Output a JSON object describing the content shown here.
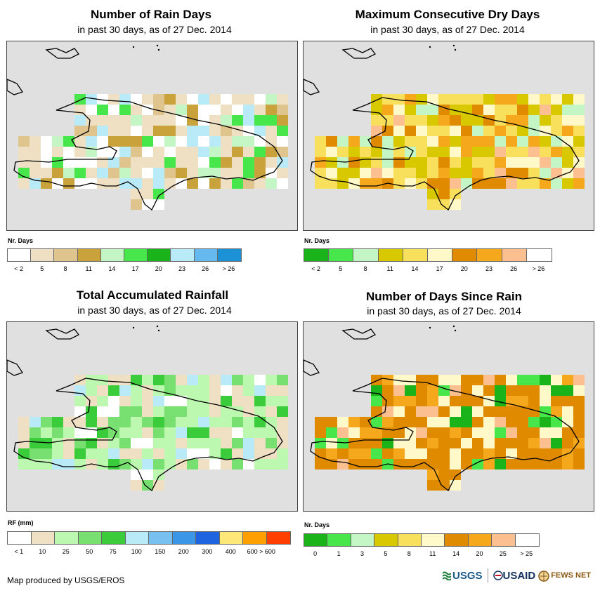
{
  "panels": [
    {
      "id": "rain-days",
      "title": "Number of Rain Days",
      "subtitle": "in past 30 days, as of 27 Dec. 2014",
      "legend_title": "Nr. Days",
      "legend_colors": [
        "#ffffff",
        "#f0e0c3",
        "#e0c48e",
        "#c9a23b",
        "#c3f5c5",
        "#47e64a",
        "#1ab31a",
        "#b8eaf8",
        "#66b9ef",
        "#1d91d6"
      ],
      "legend_labels": [
        "< 2",
        "5",
        "8",
        "11",
        "14",
        "17",
        "20",
        "23",
        "26",
        "> 26"
      ]
    },
    {
      "id": "dry-days",
      "title": "Maximum Consecutive Dry Days",
      "subtitle": "in past 30 days, as of 27 Dec. 2014",
      "legend_title": "Nr. Days",
      "legend_colors": [
        "#1ab31a",
        "#47e64a",
        "#c3f5c5",
        "#d8c800",
        "#f8df5c",
        "#fff8c8",
        "#e08a00",
        "#f6a81c",
        "#fcbf8f",
        "#ffffff"
      ],
      "legend_labels": [
        "< 2",
        "5",
        "8",
        "11",
        "14",
        "17",
        "20",
        "23",
        "26",
        "> 26"
      ]
    },
    {
      "id": "rainfall",
      "title": "Total Accumulated Rainfall",
      "subtitle": "in past 30 days, as of 27 Dec. 2014",
      "legend_title": "RF (mm)",
      "legend_colors": [
        "#ffffff",
        "#f0e0c3",
        "#bdf8b0",
        "#78e070",
        "#3acc3a",
        "#b8eaf8",
        "#78c0f0",
        "#3c96e8",
        "#1e64e0",
        "#ffe878",
        "#ffa000",
        "#ff4000"
      ],
      "legend_labels": [
        "< 1",
        "10",
        "25",
        "50",
        "75",
        "100",
        "150",
        "200",
        "300",
        "400",
        "600 > 600"
      ]
    },
    {
      "id": "since-rain",
      "title": "Number of Days Since Rain",
      "subtitle": "in past 30 days, as of 27 Dec. 2014",
      "legend_title": "Nr. Days",
      "legend_colors": [
        "#1ab31a",
        "#47e64a",
        "#c3f5c5",
        "#d8c800",
        "#f8df5c",
        "#fff8c8",
        "#e08a00",
        "#f6a81c",
        "#fcbf8f",
        "#ffffff"
      ],
      "legend_labels": [
        "0",
        "1",
        "3",
        "5",
        "8",
        "11",
        "14",
        "20",
        "25",
        "> 25"
      ]
    }
  ],
  "footer": "Map produced by USGS/EROS",
  "logos": {
    "usgs": "USGS",
    "usaid": "USAID",
    "fews": "FEWS NET"
  },
  "colors": {
    "map_background": "#e0e0e0",
    "coastline": "#000000"
  }
}
